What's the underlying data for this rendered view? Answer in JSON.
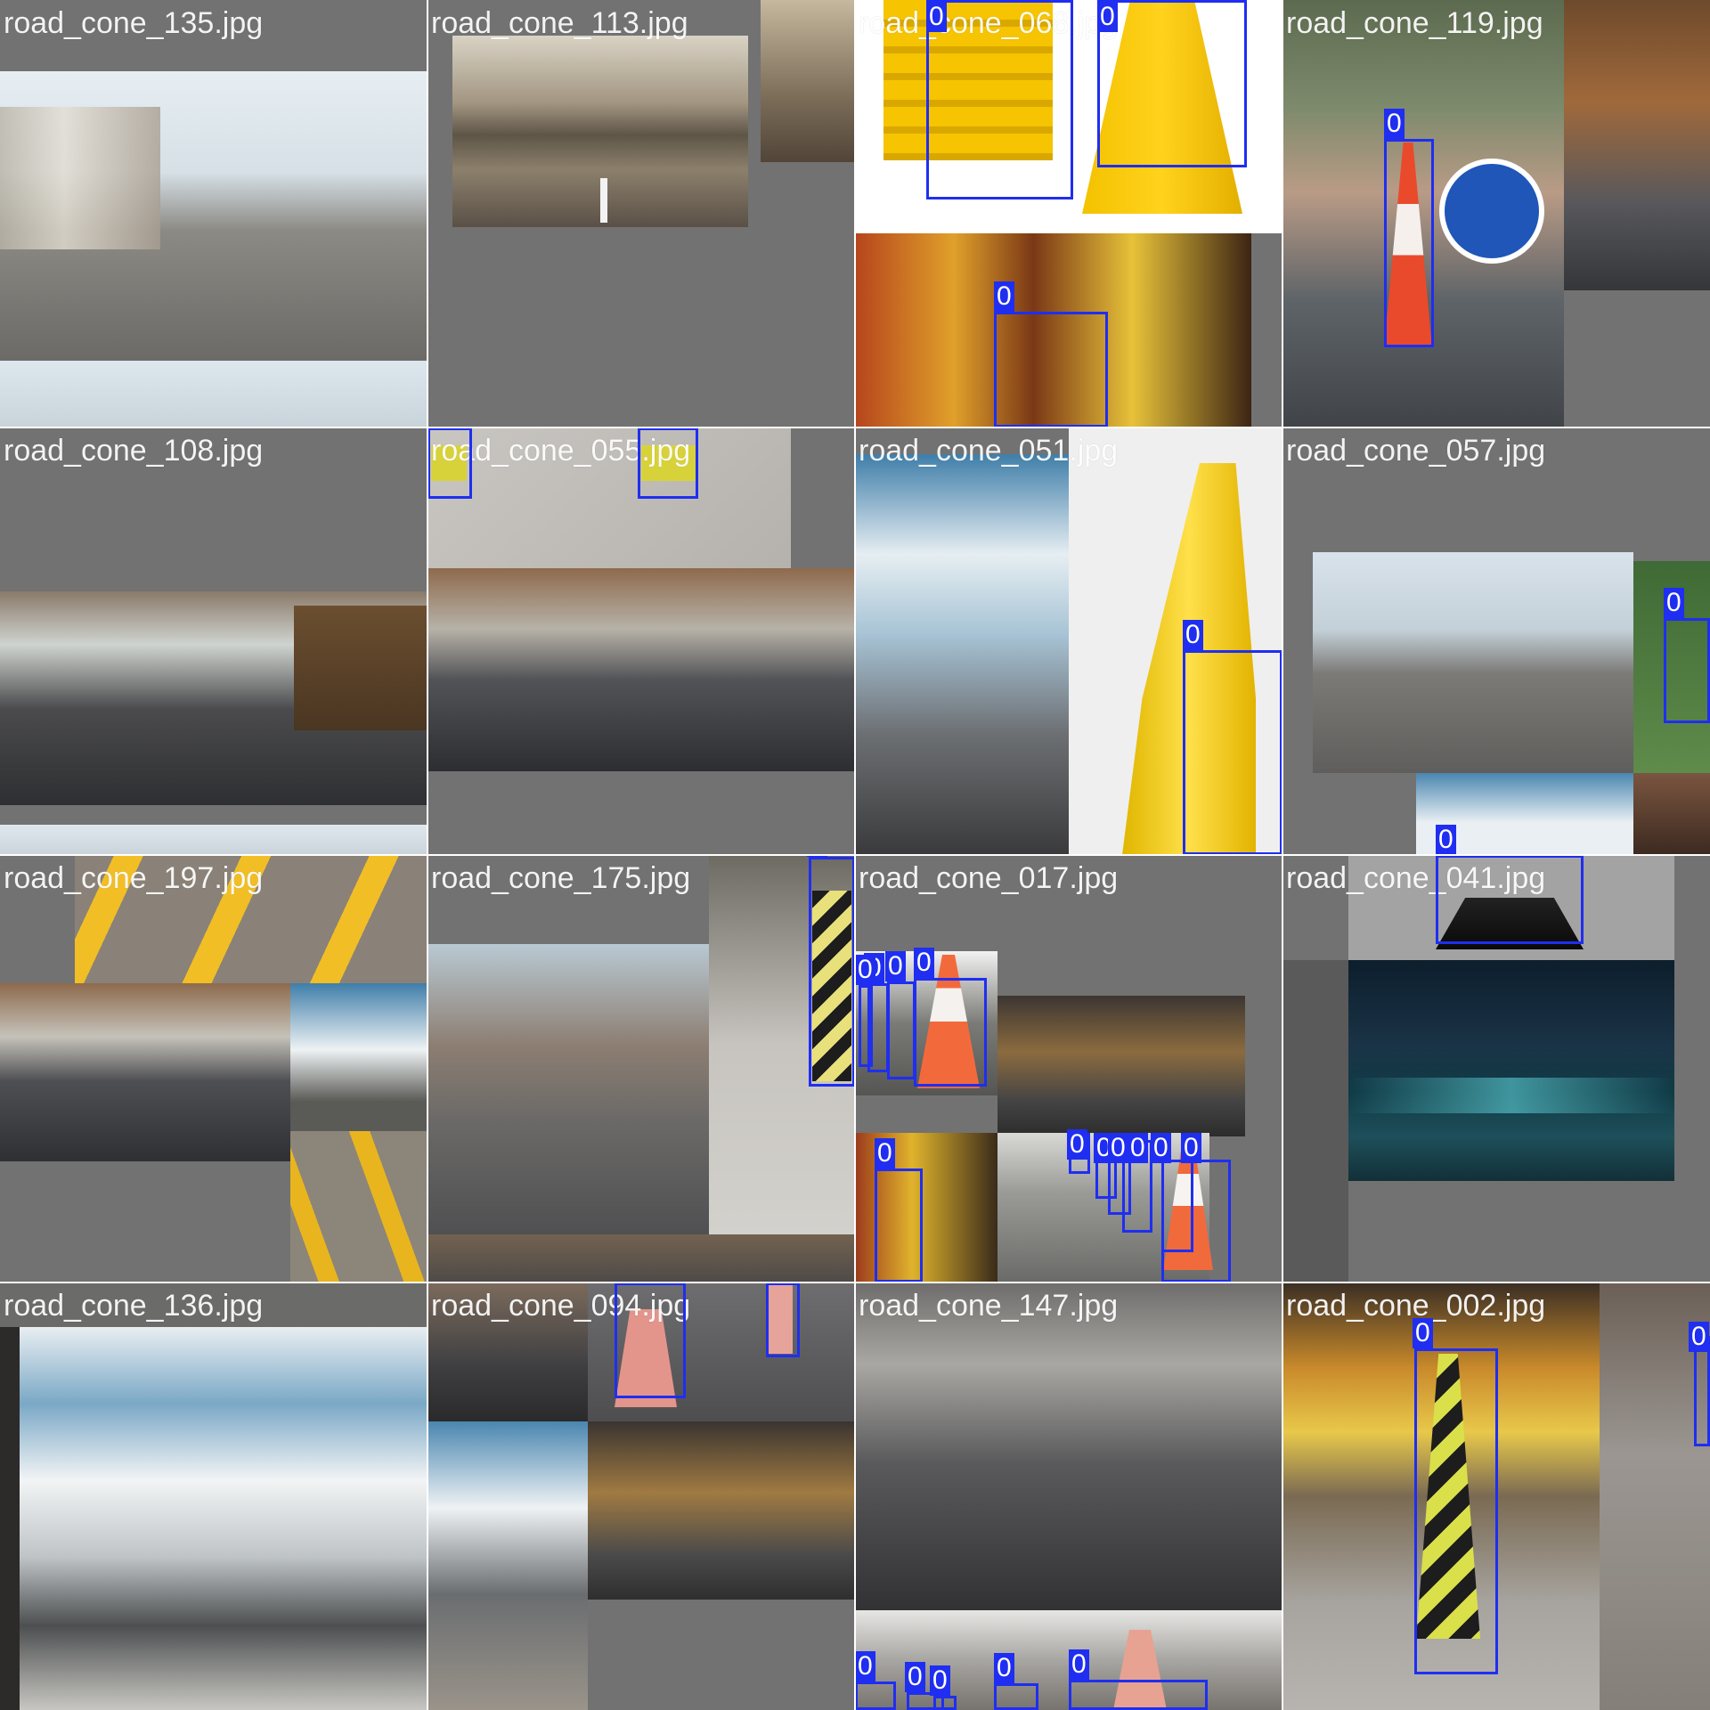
{
  "mosaic": {
    "tiles": [
      {
        "name": "road_cone_135.jpg",
        "labels": []
      },
      {
        "name": "road_cone_113.jpg",
        "labels": []
      },
      {
        "name": "road_cone_068.jpg",
        "labels": [
          "0",
          "0",
          "0"
        ]
      },
      {
        "name": "road_cone_119.jpg",
        "labels": [
          "0"
        ]
      },
      {
        "name": "road_cone_108.jpg",
        "labels": []
      },
      {
        "name": "road_cone_055.jpg",
        "labels": [
          "0",
          "0"
        ]
      },
      {
        "name": "road_cone_051.jpg",
        "labels": [
          "0"
        ]
      },
      {
        "name": "road_cone_057.jpg",
        "labels": [
          "0",
          "0"
        ]
      },
      {
        "name": "road_cone_197.jpg",
        "labels": []
      },
      {
        "name": "road_cone_175.jpg",
        "labels": [
          "0"
        ]
      },
      {
        "name": "road_cone_017.jpg",
        "labels": [
          "0",
          "0",
          "0",
          "0",
          "0",
          "0",
          "0",
          "0",
          "0",
          "0",
          "0"
        ]
      },
      {
        "name": "road_cone_041.jpg",
        "labels": [
          "0"
        ]
      },
      {
        "name": "road_cone_136.jpg",
        "labels": []
      },
      {
        "name": "road_cone_094.jpg",
        "labels": [
          "0",
          "0"
        ]
      },
      {
        "name": "road_cone_147.jpg",
        "labels": [
          "0",
          "0",
          "0",
          "0",
          "0"
        ]
      },
      {
        "name": "road_cone_002.jpg",
        "labels": [
          "0",
          "0"
        ]
      }
    ],
    "box_color": "#1f2ef0",
    "class_label": "0"
  }
}
